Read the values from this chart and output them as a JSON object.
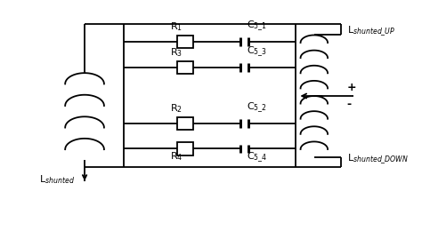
{
  "background_color": "#ffffff",
  "line_color": "#000000",
  "labels": {
    "R1": "R$_1$",
    "R2": "R$_2$",
    "R3": "R$_3$",
    "R4": "R$_4$",
    "C51": "C$_{5\\_1}$",
    "C52": "C$_{5\\_2}$",
    "C53": "C$_{5\\_3}$",
    "C54": "C$_{5\\_4}$",
    "Lshunted": "L$_{shunted}$",
    "Lshunted_UP": "L$_{shunted\\_UP}$",
    "Lshunted_DOWN": "L$_{shunted\\_DOWN}$",
    "plus": "+",
    "minus": "-"
  },
  "fontsize": 8,
  "lw": 1.3
}
